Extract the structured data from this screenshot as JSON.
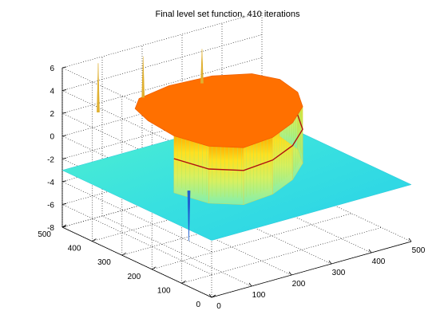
{
  "chart_data": {
    "type": "surface3d",
    "title": "Final level set function, 410 iterations",
    "zlim": [
      -8,
      6
    ],
    "zticks": [
      -8,
      -6,
      -4,
      -2,
      0,
      2,
      4,
      6
    ],
    "zticklabels": [
      "-8",
      "-6",
      "-4",
      "-2",
      "0",
      "2",
      "4",
      "6"
    ],
    "xlim": [
      0,
      500
    ],
    "xticks": [
      0,
      100,
      200,
      300,
      400,
      500
    ],
    "xticklabels": [
      "0",
      "100",
      "200",
      "300",
      "400",
      "500"
    ],
    "ylim": [
      0,
      500
    ],
    "yticks": [
      0,
      100,
      200,
      300,
      400,
      500
    ],
    "yticklabels": [
      "0",
      "100",
      "200",
      "300",
      "400",
      "500"
    ],
    "grid": true,
    "surface": {
      "plateau_level": 2,
      "floor_level": -3,
      "zero_contour_level": 0,
      "spikes": [
        {
          "x": 60,
          "y": 460,
          "z": 6.3
        },
        {
          "x": 180,
          "y": 470,
          "z": 5.6
        },
        {
          "x": 320,
          "y": 460,
          "z": 5.0
        },
        {
          "x": 130,
          "y": 250,
          "z": -7.4
        }
      ]
    },
    "colors": {
      "plateau": "#ff7000",
      "wall_top": "#ffd000",
      "wall_mid": "#c8f060",
      "floor": "#40e8d8",
      "floor_dark": "#20c8e8",
      "contour": "#b01010",
      "grid": "#000000"
    }
  }
}
